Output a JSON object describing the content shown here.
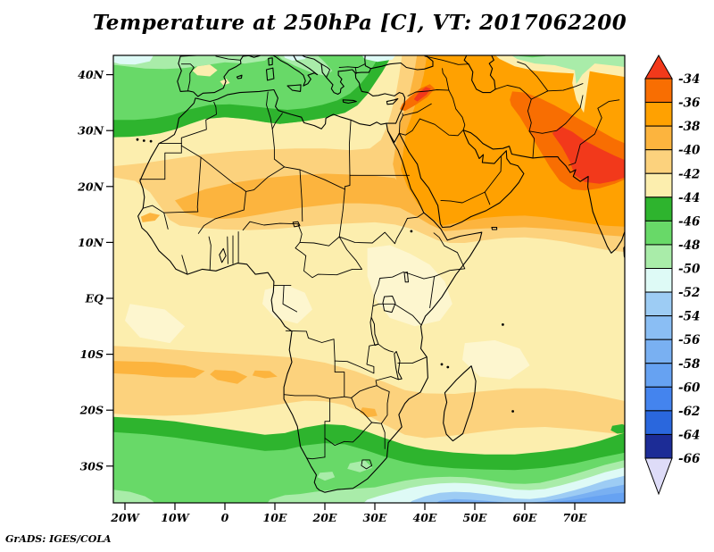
{
  "title": "Temperature at 250hPa [C], VT: 2017062200",
  "credit": "GrADS: IGES/COLA",
  "chart_data": {
    "type": "filled_contour_map",
    "variable": "Temperature",
    "level_hPa": 250,
    "units": "C",
    "valid_time": "2017062200",
    "region": {
      "description": "Africa, Mediterranean Europe, Middle East and western Indian Ocean",
      "lon_range": [
        "22W",
        "80E"
      ],
      "lat_range": [
        "37S",
        "44N"
      ]
    },
    "x_axis": {
      "ticks": [
        {
          "label": "20W",
          "lon": -20
        },
        {
          "label": "10W",
          "lon": -10
        },
        {
          "label": "0",
          "lon": 0
        },
        {
          "label": "10E",
          "lon": 10
        },
        {
          "label": "20E",
          "lon": 20
        },
        {
          "label": "30E",
          "lon": 30
        },
        {
          "label": "40E",
          "lon": 40
        },
        {
          "label": "50E",
          "lon": 50
        },
        {
          "label": "60E",
          "lon": 60
        },
        {
          "label": "70E",
          "lon": 70
        }
      ]
    },
    "y_axis": {
      "ticks": [
        {
          "label": "40N",
          "lat": 40
        },
        {
          "label": "30N",
          "lat": 30
        },
        {
          "label": "20N",
          "lat": 20
        },
        {
          "label": "10N",
          "lat": 10
        },
        {
          "label": "EQ",
          "lat": 0
        },
        {
          "label": "10S",
          "lat": -10
        },
        {
          "label": "20S",
          "lat": -20
        },
        {
          "label": "30S",
          "lat": -30
        }
      ]
    },
    "colorbar": {
      "side": "right",
      "open_ended": true,
      "tick_labels": [
        "-34",
        "-36",
        "-38",
        "-40",
        "-42",
        "-44",
        "-46",
        "-48",
        "-50",
        "-52",
        "-54",
        "-56",
        "-58",
        "-60",
        "-62",
        "-64",
        "-66"
      ],
      "colors": [
        "#f2391b",
        "#f86e02",
        "#ffa101",
        "#fcb43e",
        "#fcd27d",
        "#fceeae",
        "#2eb42e",
        "#68d968",
        "#a9eca9",
        "#defaf6",
        "#9dccf4",
        "#8abef4",
        "#79b0f2",
        "#66a2f2",
        "#4484ee",
        "#2a67dd",
        "#1c2c96",
        "#dedcf8"
      ]
    },
    "map": {
      "accent_cream": "#fdf6cf",
      "line_color": "#000000",
      "features": [
        "Warmest air (-34 to -36 C, red-orange) over Pakistan / northwest India and near southeast Turkey-Syria",
        "Broad warm band (-36 to -40 C, orange) across the Middle East, Arabia and the Red Sea",
        "Orange Sahel band (-38 to -40 C) from Mali and Niger eastward across Sudan",
        "Pale yellow (-42 to -44 C) over equatorial Africa and the tropical oceans",
        "Green band (-44 to -50 C) along the Mediterranean and southern Europe, pale blue patches at the northern edge",
        "Green to blue bands (-44 to -60 C) south of about 22S, coldest blues in the southeast corner of the map"
      ]
    }
  }
}
